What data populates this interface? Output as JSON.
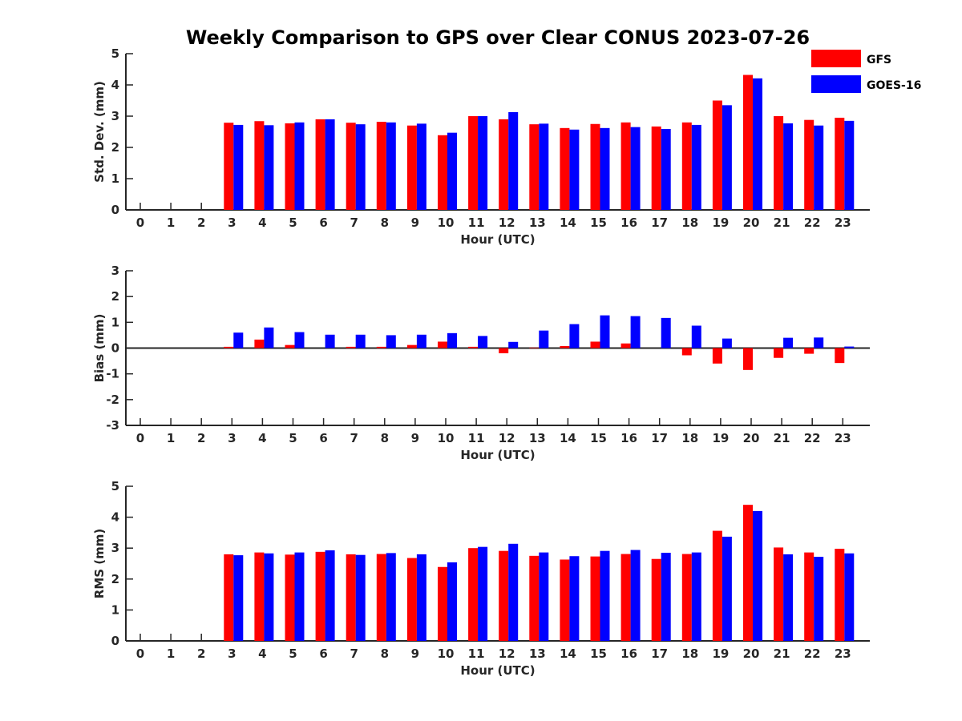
{
  "colors": {
    "GFS": "#ff0000",
    "GOES-16": "#0000ff",
    "axis": "#262626"
  },
  "chart_data": {
    "type": "bar",
    "title": "Weekly Comparison to GPS over Clear CONUS 2023-07-26",
    "legend": {
      "placement": "top-right",
      "entries": [
        "GFS",
        "GOES-16"
      ]
    },
    "grid": false,
    "panels": [
      {
        "id": "std",
        "ylabel": "Std. Dev. (mm)",
        "xlabel": "Hour (UTC)",
        "ylim": [
          0,
          5
        ],
        "yticks": [
          0,
          1,
          2,
          3,
          4,
          5
        ],
        "categories": [
          "0",
          "1",
          "2",
          "3",
          "4",
          "5",
          "6",
          "7",
          "8",
          "9",
          "10",
          "11",
          "12",
          "13",
          "14",
          "15",
          "16",
          "17",
          "18",
          "19",
          "20",
          "21",
          "22",
          "23"
        ],
        "series": [
          {
            "name": "GFS",
            "values": [
              null,
              null,
              null,
              2.79,
              2.84,
              2.77,
              2.9,
              2.79,
              2.82,
              2.7,
              2.39,
              3.0,
              2.9,
              2.74,
              2.62,
              2.75,
              2.8,
              2.67,
              2.8,
              3.5,
              4.32,
              3.0,
              2.88,
              2.95
            ]
          },
          {
            "name": "GOES-16",
            "values": [
              null,
              null,
              null,
              2.72,
              2.71,
              2.8,
              2.9,
              2.74,
              2.8,
              2.76,
              2.47,
              3.0,
              3.13,
              2.76,
              2.57,
              2.62,
              2.65,
              2.59,
              2.72,
              3.35,
              4.21,
              2.77,
              2.7,
              2.85
            ]
          }
        ]
      },
      {
        "id": "bias",
        "ylabel": "Bias (mm)",
        "xlabel": "Hour (UTC)",
        "ylim": [
          -3,
          3
        ],
        "yticks": [
          -3,
          -2,
          -1,
          0,
          1,
          2,
          3
        ],
        "categories": [
          "0",
          "1",
          "2",
          "3",
          "4",
          "5",
          "6",
          "7",
          "8",
          "9",
          "10",
          "11",
          "12",
          "13",
          "14",
          "15",
          "16",
          "17",
          "18",
          "19",
          "20",
          "21",
          "22",
          "23"
        ],
        "series": [
          {
            "name": "GFS",
            "values": [
              null,
              null,
              null,
              0.05,
              0.33,
              0.12,
              0.0,
              0.05,
              0.05,
              0.12,
              0.25,
              0.05,
              -0.2,
              0.02,
              0.08,
              0.25,
              0.18,
              0.0,
              -0.28,
              -0.6,
              -0.85,
              -0.38,
              -0.22,
              -0.58
            ]
          },
          {
            "name": "GOES-16",
            "values": [
              null,
              null,
              null,
              0.6,
              0.8,
              0.62,
              0.52,
              0.52,
              0.5,
              0.52,
              0.58,
              0.47,
              0.24,
              0.68,
              0.93,
              1.27,
              1.24,
              1.17,
              0.87,
              0.37,
              0.0,
              0.4,
              0.41,
              0.06
            ]
          }
        ]
      },
      {
        "id": "rms",
        "ylabel": "RMS (mm)",
        "xlabel": "Hour (UTC)",
        "ylim": [
          0,
          5
        ],
        "yticks": [
          0,
          1,
          2,
          3,
          4,
          5
        ],
        "categories": [
          "0",
          "1",
          "2",
          "3",
          "4",
          "5",
          "6",
          "7",
          "8",
          "9",
          "10",
          "11",
          "12",
          "13",
          "14",
          "15",
          "16",
          "17",
          "18",
          "19",
          "20",
          "21",
          "22",
          "23"
        ],
        "series": [
          {
            "name": "GFS",
            "values": [
              null,
              null,
              null,
              2.8,
              2.86,
              2.79,
              2.88,
              2.8,
              2.81,
              2.68,
              2.39,
              3.0,
              2.91,
              2.75,
              2.63,
              2.73,
              2.81,
              2.65,
              2.81,
              3.56,
              4.4,
              3.02,
              2.86,
              2.98
            ]
          },
          {
            "name": "GOES-16",
            "values": [
              null,
              null,
              null,
              2.77,
              2.83,
              2.86,
              2.93,
              2.78,
              2.84,
              2.8,
              2.54,
              3.04,
              3.14,
              2.86,
              2.74,
              2.91,
              2.94,
              2.85,
              2.86,
              3.37,
              4.2,
              2.8,
              2.72,
              2.83
            ]
          }
        ]
      }
    ]
  }
}
